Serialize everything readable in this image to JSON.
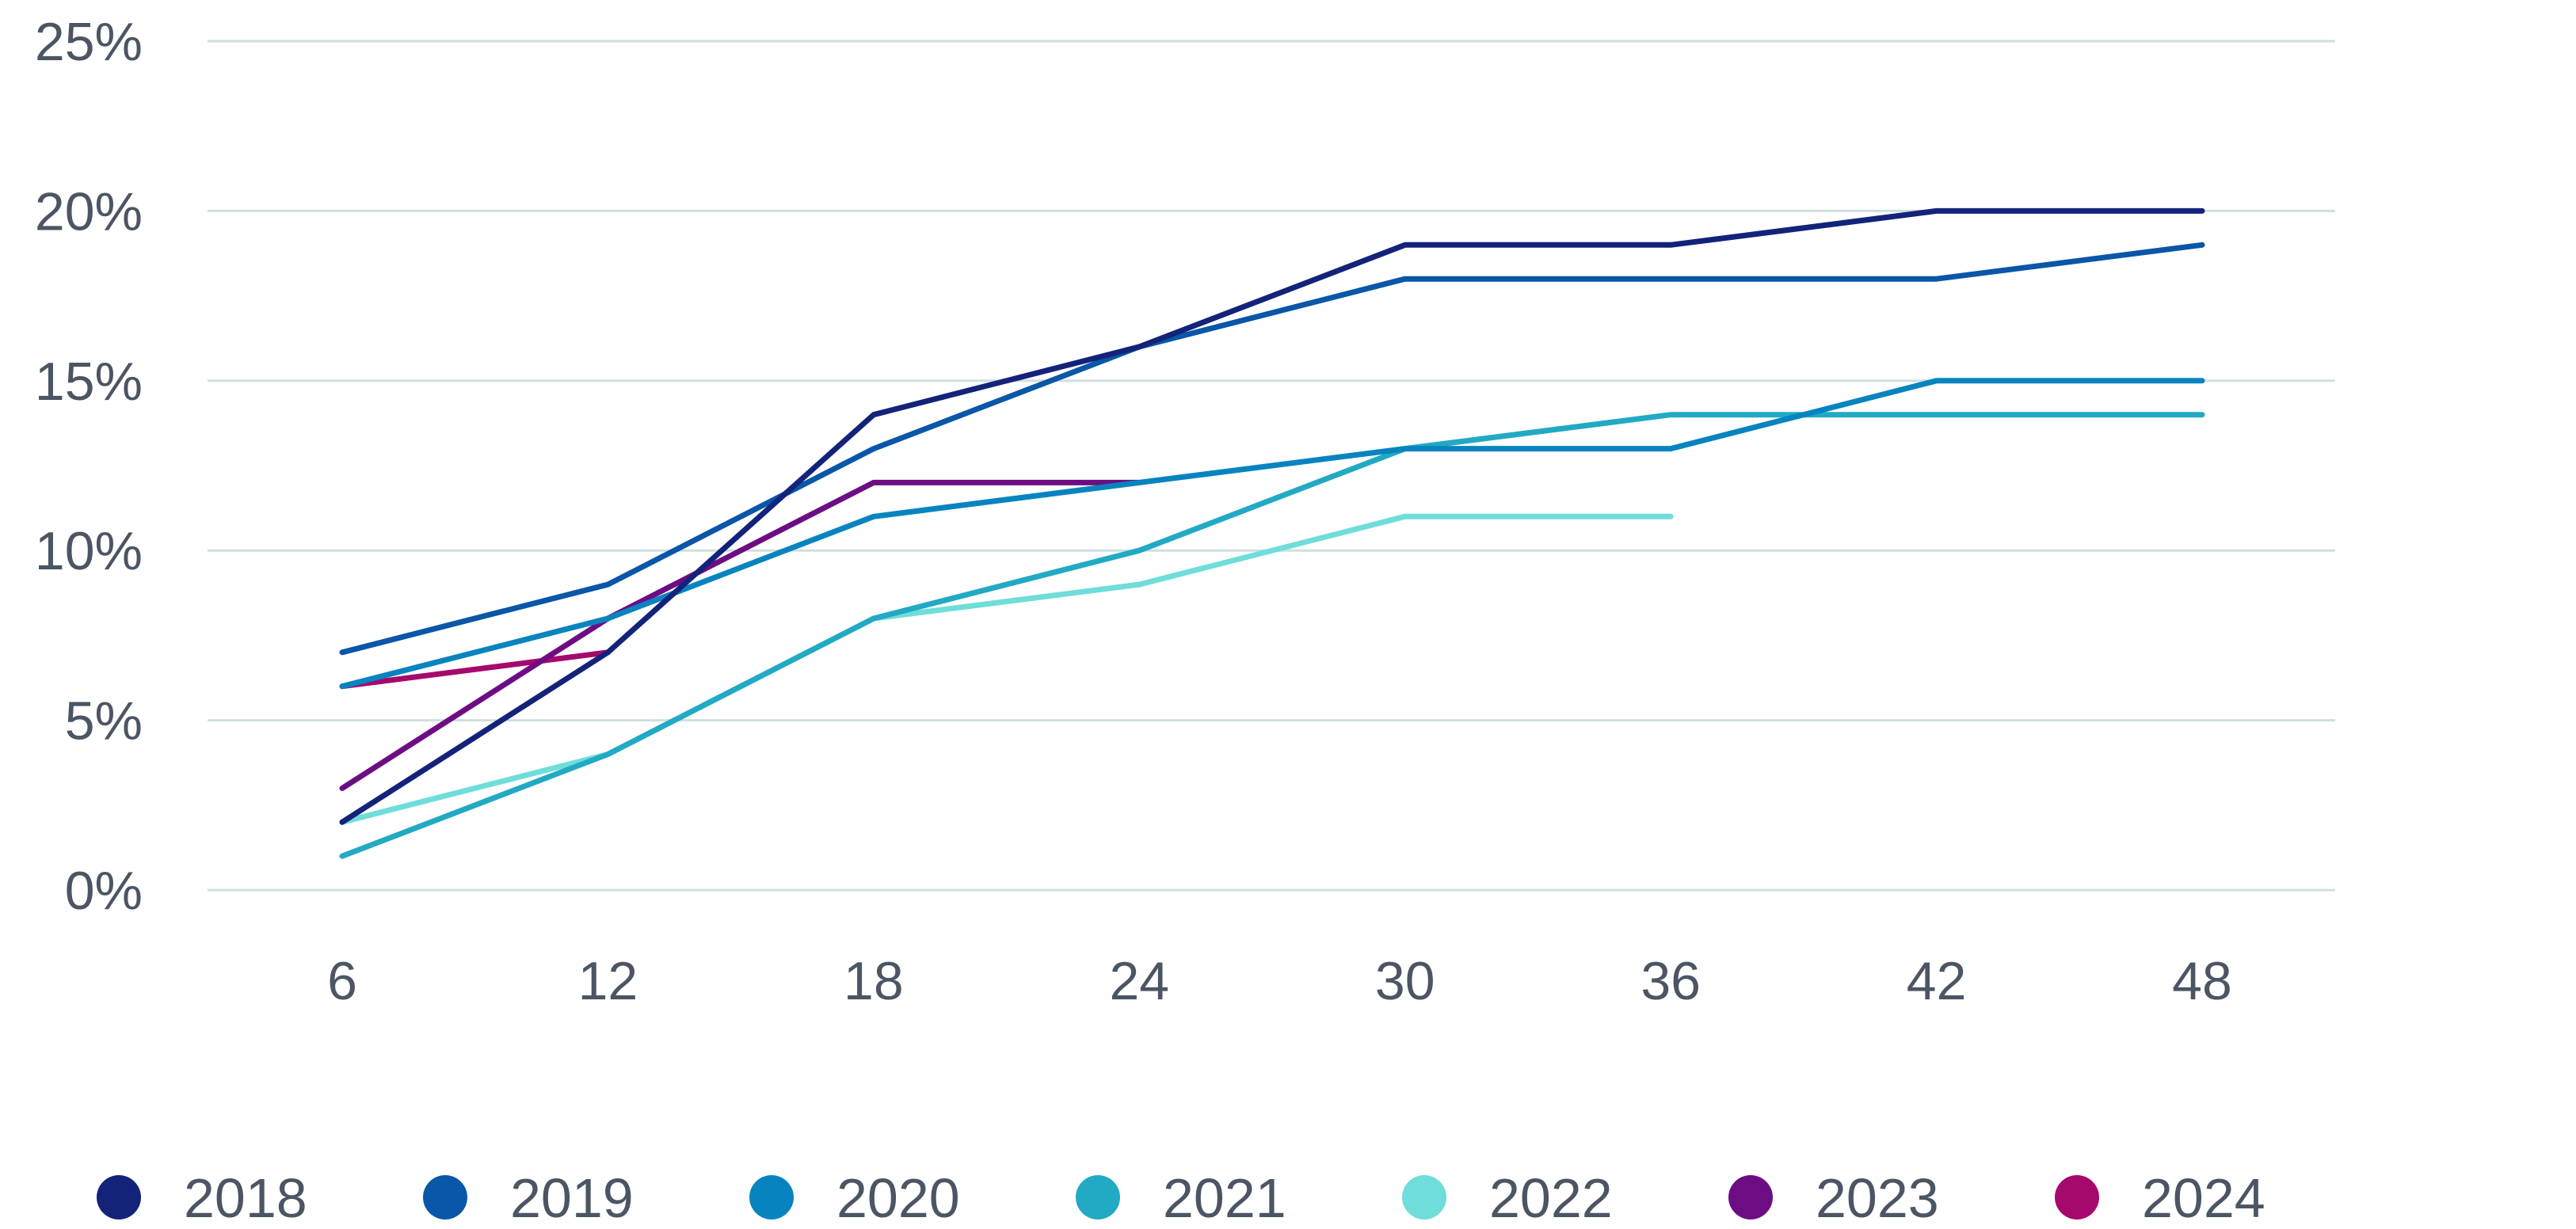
{
  "chart_data": {
    "type": "line",
    "title": "",
    "xlabel": "",
    "ylabel": "",
    "x": [
      6,
      12,
      18,
      24,
      30,
      36,
      42,
      48
    ],
    "x_tick_labels": [
      "6",
      "12",
      "18",
      "24",
      "30",
      "36",
      "42",
      "48"
    ],
    "ylim": [
      0,
      25
    ],
    "y_ticks": [
      0,
      5,
      10,
      15,
      20,
      25
    ],
    "y_tick_labels": [
      "0%",
      "5%",
      "10%",
      "15%",
      "20%",
      "25%"
    ],
    "grid": true,
    "legend_position": "bottom",
    "series": [
      {
        "name": "2018",
        "color": "#13237a",
        "values": [
          2,
          7,
          14,
          16,
          19,
          19,
          20,
          20
        ]
      },
      {
        "name": "2019",
        "color": "#0a56a8",
        "values": [
          7,
          9,
          13,
          16,
          18,
          18,
          18,
          19
        ]
      },
      {
        "name": "2020",
        "color": "#0784bf",
        "values": [
          6,
          8,
          11,
          12,
          13,
          13,
          15,
          15
        ]
      },
      {
        "name": "2021",
        "color": "#22a9c4",
        "values": [
          1,
          4,
          8,
          10,
          13,
          14,
          14,
          14
        ]
      },
      {
        "name": "2022",
        "color": "#6fddd9",
        "values": [
          2,
          4,
          8,
          9,
          11,
          11,
          null,
          null
        ]
      },
      {
        "name": "2023",
        "color": "#6d0d84",
        "values": [
          3,
          8,
          12,
          12,
          null,
          null,
          null,
          null
        ]
      },
      {
        "name": "2024",
        "color": "#a6096c",
        "values": [
          6,
          7,
          null,
          null,
          null,
          null,
          null,
          null
        ]
      }
    ]
  }
}
